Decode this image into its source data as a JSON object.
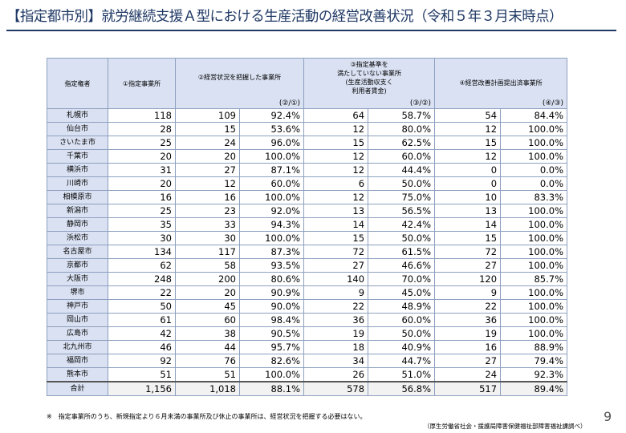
{
  "page": {
    "title": "【指定都市別】就労継続支援Ａ型における生産活動の経営改善状況（令和５年３月末時点）",
    "footnote": "※　指定事業所のうち、新規指定より６月未満の事業所及び休止の事業所は、経営状況を把握する必要はない。",
    "source": "（厚生労働省社会・援護局障害保健福祉部障害福祉課調べ）",
    "page_number": "9"
  },
  "table": {
    "headers": {
      "authority": "指定権者",
      "col1": "①指定事業所",
      "col2": "②経営状況を把握した事業所",
      "col2_ratio": "(②/①)",
      "col3": "③指定基準を\n満たしていない事業所\n(生産活動収支く\n利用者賃金)",
      "col3_ratio": "(③/②)",
      "col4": "④経営改善計画提出済事業所",
      "col4_ratio": "(④/③)"
    },
    "rows": [
      {
        "city": "札幌市",
        "c1": "118",
        "c2": "109",
        "r2": "92.4%",
        "c3": "64",
        "r3": "58.7%",
        "c4": "54",
        "r4": "84.4%"
      },
      {
        "city": "仙台市",
        "c1": "28",
        "c2": "15",
        "r2": "53.6%",
        "c3": "12",
        "r3": "80.0%",
        "c4": "12",
        "r4": "100.0%"
      },
      {
        "city": "さいたま市",
        "c1": "25",
        "c2": "24",
        "r2": "96.0%",
        "c3": "15",
        "r3": "62.5%",
        "c4": "15",
        "r4": "100.0%"
      },
      {
        "city": "千葉市",
        "c1": "20",
        "c2": "20",
        "r2": "100.0%",
        "c3": "12",
        "r3": "60.0%",
        "c4": "12",
        "r4": "100.0%"
      },
      {
        "city": "横浜市",
        "c1": "31",
        "c2": "27",
        "r2": "87.1%",
        "c3": "12",
        "r3": "44.4%",
        "c4": "0",
        "r4": "0.0%"
      },
      {
        "city": "川崎市",
        "c1": "20",
        "c2": "12",
        "r2": "60.0%",
        "c3": "6",
        "r3": "50.0%",
        "c4": "0",
        "r4": "0.0%"
      },
      {
        "city": "相模原市",
        "c1": "16",
        "c2": "16",
        "r2": "100.0%",
        "c3": "12",
        "r3": "75.0%",
        "c4": "10",
        "r4": "83.3%"
      },
      {
        "city": "新潟市",
        "c1": "25",
        "c2": "23",
        "r2": "92.0%",
        "c3": "13",
        "r3": "56.5%",
        "c4": "13",
        "r4": "100.0%"
      },
      {
        "city": "静岡市",
        "c1": "35",
        "c2": "33",
        "r2": "94.3%",
        "c3": "14",
        "r3": "42.4%",
        "c4": "14",
        "r4": "100.0%"
      },
      {
        "city": "浜松市",
        "c1": "30",
        "c2": "30",
        "r2": "100.0%",
        "c3": "15",
        "r3": "50.0%",
        "c4": "15",
        "r4": "100.0%"
      },
      {
        "city": "名古屋市",
        "c1": "134",
        "c2": "117",
        "r2": "87.3%",
        "c3": "72",
        "r3": "61.5%",
        "c4": "72",
        "r4": "100.0%"
      },
      {
        "city": "京都市",
        "c1": "62",
        "c2": "58",
        "r2": "93.5%",
        "c3": "27",
        "r3": "46.6%",
        "c4": "27",
        "r4": "100.0%"
      },
      {
        "city": "大阪市",
        "c1": "248",
        "c2": "200",
        "r2": "80.6%",
        "c3": "140",
        "r3": "70.0%",
        "c4": "120",
        "r4": "85.7%"
      },
      {
        "city": "堺市",
        "c1": "22",
        "c2": "20",
        "r2": "90.9%",
        "c3": "9",
        "r3": "45.0%",
        "c4": "9",
        "r4": "100.0%"
      },
      {
        "city": "神戸市",
        "c1": "50",
        "c2": "45",
        "r2": "90.0%",
        "c3": "22",
        "r3": "48.9%",
        "c4": "22",
        "r4": "100.0%"
      },
      {
        "city": "岡山市",
        "c1": "61",
        "c2": "60",
        "r2": "98.4%",
        "c3": "36",
        "r3": "60.0%",
        "c4": "36",
        "r4": "100.0%"
      },
      {
        "city": "広島市",
        "c1": "42",
        "c2": "38",
        "r2": "90.5%",
        "c3": "19",
        "r3": "50.0%",
        "c4": "19",
        "r4": "100.0%"
      },
      {
        "city": "北九州市",
        "c1": "46",
        "c2": "44",
        "r2": "95.7%",
        "c3": "18",
        "r3": "40.9%",
        "c4": "16",
        "r4": "88.9%"
      },
      {
        "city": "福岡市",
        "c1": "92",
        "c2": "76",
        "r2": "82.6%",
        "c3": "34",
        "r3": "44.7%",
        "c4": "27",
        "r4": "79.4%"
      },
      {
        "city": "熊本市",
        "c1": "51",
        "c2": "51",
        "r2": "100.0%",
        "c3": "26",
        "r3": "51.0%",
        "c4": "24",
        "r4": "92.3%"
      }
    ],
    "total": {
      "city": "合計",
      "c1": "1,156",
      "c2": "1,018",
      "r2": "88.1%",
      "c3": "578",
      "r3": "56.8%",
      "c4": "517",
      "r4": "89.4%"
    }
  }
}
